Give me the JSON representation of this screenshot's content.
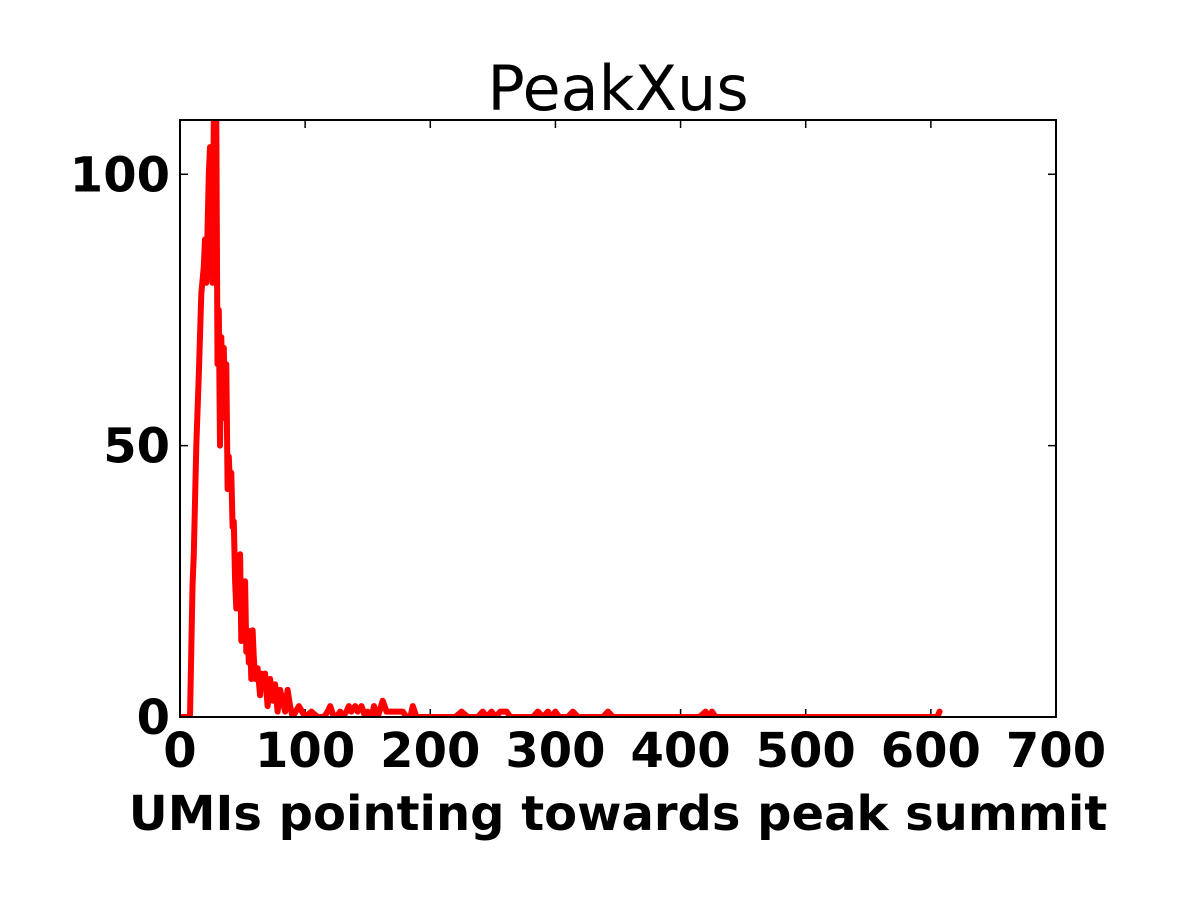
{
  "chart_data": {
    "type": "line",
    "title": "PeakXus",
    "xlabel": "UMIs pointing towards peak summit",
    "ylabel": "",
    "xlim": [
      0,
      700
    ],
    "ylim": [
      0,
      110
    ],
    "xticks": [
      0,
      100,
      200,
      300,
      400,
      500,
      600,
      700
    ],
    "yticks": [
      0,
      50,
      100
    ],
    "grid": false,
    "series": [
      {
        "color": "#ff0000",
        "x": [
          0,
          8,
          10,
          11,
          13,
          15,
          17,
          19,
          20,
          21,
          23,
          24,
          25,
          26,
          27,
          28,
          29,
          30,
          31,
          32,
          33,
          34,
          35,
          36,
          37,
          38,
          39,
          40,
          41,
          42,
          43,
          44,
          45,
          46,
          47,
          48,
          49,
          50,
          51,
          52,
          53,
          54,
          55,
          56,
          57,
          58,
          59,
          60,
          62,
          64,
          65,
          66,
          68,
          70,
          72,
          74,
          76,
          78,
          80,
          82,
          84,
          86,
          88,
          90,
          95,
          100,
          105,
          110,
          115,
          118,
          120,
          123,
          125,
          128,
          130,
          133,
          135,
          137,
          140,
          142,
          145,
          148,
          150,
          153,
          155,
          158,
          162,
          165,
          170,
          175,
          178,
          181,
          184,
          186,
          189,
          220,
          225,
          230,
          238,
          242,
          245,
          249,
          252,
          256,
          258,
          261,
          264,
          282,
          286,
          290,
          294,
          297,
          300,
          303,
          310,
          314,
          318,
          338,
          342,
          346,
          415,
          420,
          423,
          425,
          428,
          600,
          605,
          607
        ],
        "y": [
          0,
          0,
          24,
          30,
          50,
          63,
          78,
          83,
          88,
          80,
          100,
          105,
          95,
          80,
          110,
          115,
          110,
          65,
          75,
          50,
          70,
          60,
          68,
          55,
          65,
          42,
          48,
          42,
          45,
          35,
          36,
          25,
          20,
          28,
          20,
          30,
          14,
          22,
          18,
          25,
          12,
          16,
          10,
          15,
          7,
          16,
          11,
          7,
          9,
          4,
          8,
          6,
          8,
          2,
          7,
          3,
          6,
          1,
          5,
          3,
          1,
          5,
          2,
          0,
          2,
          0,
          1,
          0,
          0,
          1,
          2,
          0,
          0,
          1,
          0,
          1,
          2,
          1,
          2,
          1,
          2,
          0,
          1,
          0,
          2,
          0,
          3,
          1,
          1,
          1,
          1,
          0,
          0,
          2,
          0,
          0,
          1,
          0,
          0,
          1,
          0,
          1,
          0,
          1,
          1,
          1,
          0,
          0,
          1,
          0,
          1,
          0,
          1,
          0,
          0,
          1,
          0,
          0,
          1,
          0,
          0,
          1,
          0,
          1,
          0,
          0,
          0,
          1
        ]
      }
    ]
  }
}
